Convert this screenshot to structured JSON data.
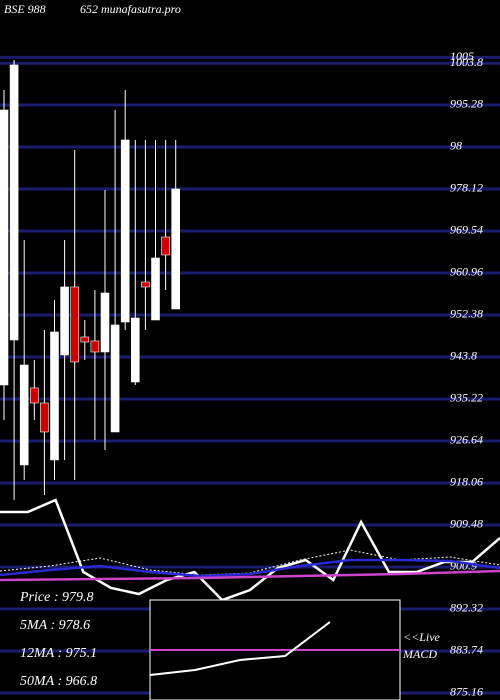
{
  "chart_data": {
    "type": "candlestick",
    "title": "BSE 988",
    "subtitle": "652 munafasutra.pro",
    "ylim": [
      873.72,
      1016.73
    ],
    "yticks": [
      1005,
      1003.8,
      995.28,
      {
        "value": 986.7,
        "label": "98"
      },
      978.12,
      969.54,
      960.96,
      952.38,
      943.8,
      935.22,
      926.64,
      918.06,
      909.48,
      900.9,
      892.32,
      883.74,
      875.16
    ],
    "grid": true,
    "grid_color": "#1c1c6e",
    "up_color": "#ffffff",
    "down_color": "#cc0000",
    "open": [
      938.08,
      947.27,
      921.74,
      937.47,
      934.4,
      922.76,
      944.21,
      958.1,
      947.88,
      947.07,
      944.82,
      928.48,
      950.95,
      938.69,
      959.12,
      951.36,
      968.31,
      953.6
    ],
    "high": [
      998.35,
      1004.47,
      967.7,
      943.19,
      949.31,
      955.44,
      967.7,
      986.09,
      951.36,
      957.49,
      977.92,
      994.26,
      998.35,
      988.13,
      988.13,
      988.13,
      988.13,
      988.13
    ],
    "low": [
      930.93,
      914.58,
      918.67,
      930.93,
      915.61,
      918.67,
      922.76,
      918.67,
      943.19,
      926.84,
      924.8,
      928.48,
      949.31,
      938.08,
      949.31,
      951.36,
      957.49,
      953.6
    ],
    "close": [
      994.26,
      1003.45,
      942.16,
      934.4,
      928.48,
      948.91,
      958.1,
      942.78,
      946.86,
      944.82,
      956.87,
      950.34,
      988.13,
      951.76,
      958.1,
      964.02,
      964.64,
      978.12
    ],
    "series": [
      {
        "color": "#ffffff",
        "style": "solid",
        "values": [
          912.13,
          912.13,
          914.58,
          899.87,
          896.6,
          895.38,
          898.24,
          899.87,
          894.15,
          896.19,
          900.69,
          902.32,
          898.24,
          910.09,
          899.87,
          899.87,
          901.91,
          901.91,
          906.82
        ]
      },
      {
        "color": "#ffffff",
        "style": "dotted",
        "values": [
          900.07,
          901.1,
          902.73,
          900.28,
          899.26,
          899.67,
          902.32,
          904.37,
          902.32,
          902.94,
          901.3
        ]
      },
      {
        "color": "#2a2ad0",
        "style": "solid",
        "values": [
          899.26,
          900.28,
          901.1,
          899.87,
          899.05,
          899.46,
          901.1,
          902.32,
          902.32,
          902.12,
          900.69
        ]
      },
      {
        "color": "#cc44cc",
        "style": "solid",
        "values": [
          898.24,
          898.44,
          898.65,
          899.05,
          899.46,
          900.07
        ]
      }
    ],
    "info": [
      "Price  : 979.8",
      "5MA : 978.6",
      "12MA : 975.1",
      "50MA : 966.8"
    ],
    "live_label": "<<Live",
    "macd_label": "MACD",
    "macd": {
      "ylim": [
        -5,
        5
      ],
      "signal": 0,
      "signal_color": "#cc44cc",
      "color": "#ffffff",
      "values": [
        -2.5,
        -2,
        -1,
        -0.6,
        2.8
      ]
    }
  }
}
